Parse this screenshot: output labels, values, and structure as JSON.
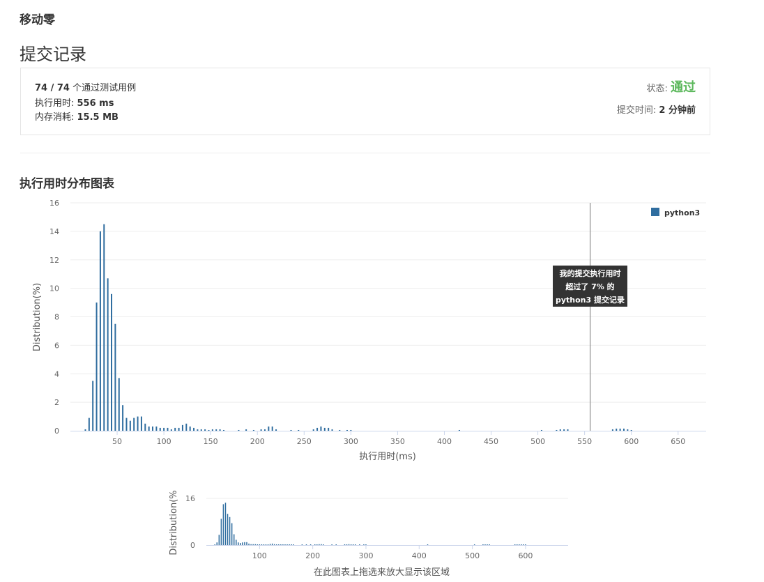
{
  "problem_title": "移动零",
  "page_title": "提交记录",
  "summary": {
    "passed": "74 / 74",
    "passed_suffix": " 个通过测试用例",
    "runtime_label": "执行用时: ",
    "runtime_value": "556 ms",
    "memory_label": "内存消耗: ",
    "memory_value": "15.5 MB",
    "status_label": "状态: ",
    "status_value": "通过",
    "submit_time_label": "提交时间: ",
    "submit_time_value": "2 分钟前"
  },
  "section_title": "执行用时分布图表",
  "tooltip": {
    "line1": "我的提交执行用时",
    "line2": "超过了 7% 的",
    "line3": "python3 提交记录"
  },
  "navigator_caption": "在此图表上拖选来放大显示该区域",
  "colors": {
    "bar": "#2f6d9f",
    "pass": "#5cb85c"
  },
  "chart_data": [
    {
      "type": "bar",
      "xlabel": "执行用时(ms)",
      "ylabel": "Distribution(%)",
      "xlim": [
        0,
        680
      ],
      "ylim": [
        0,
        16
      ],
      "x_ticks": [
        50,
        100,
        150,
        200,
        250,
        300,
        350,
        400,
        450,
        500,
        550,
        600,
        650
      ],
      "y_ticks": [
        0,
        2,
        4,
        6,
        8,
        10,
        12,
        14,
        16
      ],
      "legend": "top-right",
      "series": [
        {
          "name": "python3",
          "x": [
            16,
            20,
            24,
            28,
            32,
            36,
            40,
            44,
            48,
            52,
            56,
            60,
            64,
            68,
            72,
            76,
            80,
            84,
            88,
            92,
            96,
            100,
            104,
            108,
            112,
            116,
            120,
            124,
            128,
            132,
            136,
            140,
            144,
            148,
            152,
            156,
            160,
            164,
            180,
            188,
            196,
            204,
            208,
            212,
            216,
            220,
            236,
            244,
            260,
            264,
            268,
            272,
            276,
            280,
            288,
            296,
            300,
            416,
            504,
            520,
            524,
            528,
            532,
            580,
            584,
            588,
            592,
            596,
            600
          ],
          "values": [
            0.1,
            0.9,
            3.5,
            9.0,
            14.0,
            14.5,
            10.7,
            9.6,
            7.5,
            3.7,
            1.8,
            0.9,
            0.7,
            0.9,
            1.0,
            1.0,
            0.5,
            0.3,
            0.3,
            0.3,
            0.2,
            0.2,
            0.2,
            0.1,
            0.2,
            0.2,
            0.4,
            0.5,
            0.3,
            0.2,
            0.1,
            0.1,
            0.1,
            0.05,
            0.1,
            0.1,
            0.1,
            0.05,
            0.05,
            0.1,
            0.05,
            0.1,
            0.1,
            0.3,
            0.3,
            0.1,
            0.05,
            0.05,
            0.1,
            0.2,
            0.3,
            0.2,
            0.2,
            0.1,
            0.05,
            0.05,
            0.05,
            0.05,
            0.05,
            0.05,
            0.1,
            0.1,
            0.1,
            0.1,
            0.15,
            0.15,
            0.15,
            0.1,
            0.05
          ]
        }
      ],
      "marker_x": 556
    },
    {
      "type": "bar",
      "xlabel": "",
      "ylabel": "Distribution(%",
      "xlim": [
        0,
        680
      ],
      "ylim": [
        0,
        16
      ],
      "x_ticks": [
        100,
        200,
        300,
        400,
        500,
        600
      ],
      "y_ticks": [
        0,
        16
      ]
    }
  ]
}
